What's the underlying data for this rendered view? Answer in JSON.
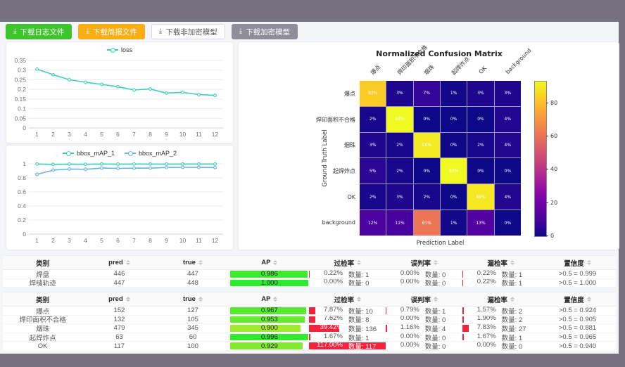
{
  "toolbar": {
    "buttons": [
      {
        "label": "下载日志文件",
        "variant": "green"
      },
      {
        "label": "下载简报文件",
        "variant": "orange"
      },
      {
        "label": "下载非加密模型",
        "variant": "plain"
      },
      {
        "label": "下载加密模型",
        "variant": "gray"
      }
    ],
    "download_icon": "⤓"
  },
  "colors": {
    "teal_series": "#3fcdbb",
    "blue_series": "#6ab2e7",
    "rate_bar_red": "#f5223d",
    "button_green": "#3fc42d",
    "button_orange": "#faad14"
  },
  "chart_data": [
    {
      "id": "loss",
      "type": "line",
      "x": [
        1,
        2,
        3,
        4,
        5,
        6,
        7,
        8,
        9,
        10,
        11,
        12
      ],
      "series": [
        {
          "name": "loss",
          "color": "#3fcdbb",
          "values": [
            0.305,
            0.276,
            0.25,
            0.237,
            0.226,
            0.214,
            0.197,
            0.202,
            0.181,
            0.185,
            0.173,
            0.169
          ]
        }
      ],
      "ylim": [
        0,
        0.35
      ],
      "yticks": [
        0,
        0.05,
        0.1,
        0.15,
        0.2,
        0.25,
        0.3,
        0.35
      ],
      "grid": true,
      "legend_position": "top"
    },
    {
      "id": "map",
      "type": "line",
      "x": [
        1,
        2,
        3,
        4,
        5,
        6,
        7,
        8,
        9,
        10,
        11,
        12
      ],
      "series": [
        {
          "name": "bbox_mAP_1",
          "color": "#3fcdbb",
          "values": [
            0.997,
            0.992,
            0.996,
            0.993,
            0.997,
            0.996,
            0.997,
            0.997,
            0.996,
            0.997,
            0.997,
            0.997
          ]
        },
        {
          "name": "bbox_mAP_2",
          "color": "#6ab2e7",
          "values": [
            0.85,
            0.91,
            0.926,
            0.922,
            0.939,
            0.935,
            0.938,
            0.938,
            0.948,
            0.95,
            0.949,
            0.947
          ]
        }
      ],
      "ylim": [
        0,
        1
      ],
      "yticks": [
        0,
        0.2,
        0.4,
        0.6,
        0.8,
        1
      ],
      "grid": true,
      "legend_position": "top"
    },
    {
      "id": "confusion",
      "type": "heatmap",
      "title": "Normalized Confusion Matrix",
      "xlabel": "Prediction Label",
      "ylabel": "Ground Truth Label",
      "labels": [
        "爆点",
        "焊印面积不合格",
        "烟珠",
        "起焊炸点",
        "OK",
        "background"
      ],
      "unit": "%",
      "vmax": 93,
      "colormap": "plasma",
      "colorbar_ticks": [
        0,
        20,
        40,
        60,
        80
      ],
      "matrix": [
        [
          83,
          3,
          7,
          1,
          3,
          3
        ],
        [
          2,
          93,
          0,
          0,
          0,
          4
        ],
        [
          3,
          2,
          90,
          0,
          2,
          4
        ],
        [
          5,
          2,
          0,
          93,
          0,
          0
        ],
        [
          2,
          3,
          2,
          0,
          89,
          4
        ],
        [
          12,
          11,
          61,
          1,
          13,
          0
        ]
      ]
    }
  ],
  "tables": [
    {
      "headers": [
        "类别",
        "pred",
        "true",
        "AP",
        "过检率",
        "误判率",
        "漏检率",
        "置信度"
      ],
      "count_label": "数量:",
      "rows": [
        {
          "category": "焊盘",
          "pred": 446,
          "true": 447,
          "ap": "0.986",
          "over": {
            "pct": 0.22,
            "count": 1
          },
          "mis": {
            "pct": 0.0,
            "count": 0
          },
          "miss": {
            "pct": 0.22,
            "count": 1
          },
          "conf": ">0.5 = 0.999"
        },
        {
          "category": "焊缝轨迹",
          "pred": 447,
          "true": 448,
          "ap": "1.000",
          "over": {
            "pct": 0.0,
            "count": 0
          },
          "mis": {
            "pct": 0.0,
            "count": 0
          },
          "miss": {
            "pct": 0.22,
            "count": 1
          },
          "conf": ">0.5 = 1.000"
        }
      ]
    },
    {
      "headers": [
        "类别",
        "pred",
        "true",
        "AP",
        "过检率",
        "误判率",
        "漏检率",
        "置信度"
      ],
      "count_label": "数量:",
      "rows": [
        {
          "category": "爆点",
          "pred": 152,
          "true": 127,
          "ap": "0.967",
          "over": {
            "pct": 7.87,
            "count": 10
          },
          "mis": {
            "pct": 0.79,
            "count": 1
          },
          "miss": {
            "pct": 1.57,
            "count": 2
          },
          "conf": ">0.5 = 0.924"
        },
        {
          "category": "焊印面积不合格",
          "pred": 132,
          "true": 105,
          "ap": "0.953",
          "over": {
            "pct": 7.62,
            "count": 8
          },
          "mis": {
            "pct": 0.0,
            "count": 0
          },
          "miss": {
            "pct": 1.9,
            "count": 2
          },
          "conf": ">0.5 = 0.905"
        },
        {
          "category": "烟珠",
          "pred": 479,
          "true": 345,
          "ap": "0.900",
          "over": {
            "pct": 39.42,
            "count": 136
          },
          "mis": {
            "pct": 1.16,
            "count": 4
          },
          "miss": {
            "pct": 7.83,
            "count": 27
          },
          "conf": ">0.5 = 0.881"
        },
        {
          "category": "起焊炸点",
          "pred": 63,
          "true": 60,
          "ap": "0.996",
          "over": {
            "pct": 1.67,
            "count": 1
          },
          "mis": {
            "pct": 0.0,
            "count": 0
          },
          "miss": {
            "pct": 1.67,
            "count": 1
          },
          "conf": ">0.5 = 0.965"
        },
        {
          "category": "OK",
          "pred": 117,
          "true": 100,
          "ap": "0.929",
          "over": {
            "pct": 117.0,
            "count": 117
          },
          "mis": {
            "pct": 0.0,
            "count": 0
          },
          "miss": {
            "pct": 0.0,
            "count": 0
          },
          "conf": ">0.5 = 0.940"
        }
      ]
    }
  ]
}
